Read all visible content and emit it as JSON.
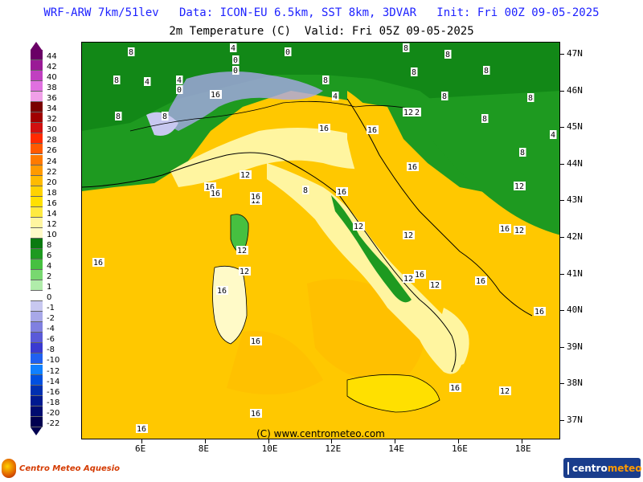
{
  "header": {
    "line1": "WRF-ARW 7km/51lev   Data: ICON-EU 6.5km, SST 8km, 3DVAR   Init: Fri 00Z 09-05-2025",
    "line2": "2m Temperature (C)  Valid: Fri 05Z 09-05-2025"
  },
  "map": {
    "lat_labels": [
      "47N",
      "46N",
      "45N",
      "44N",
      "43N",
      "42N",
      "41N",
      "40N",
      "39N",
      "38N",
      "37N"
    ],
    "lon_labels": [
      "6E",
      "8E",
      "10E",
      "12E",
      "14E",
      "16E",
      "18E"
    ],
    "contour_labels": [
      "8",
      "4",
      "0",
      "4",
      "8",
      "8",
      "8",
      "4",
      "0",
      "0",
      "0",
      "4",
      "8",
      "8",
      "8",
      "8",
      "12",
      "8",
      "8",
      "8",
      "4",
      "8",
      "8",
      "12",
      "16",
      "16",
      "16",
      "12",
      "12",
      "8",
      "16",
      "12",
      "16",
      "16",
      "16",
      "12",
      "12",
      "16",
      "16",
      "12",
      "12",
      "12",
      "16",
      "12",
      "12",
      "16",
      "16",
      "16",
      "12",
      "16",
      "16",
      "16",
      "16",
      "16"
    ],
    "copyright": "(C) www.centrometeo.com"
  },
  "colorbar": {
    "levels": [
      "44",
      "42",
      "40",
      "38",
      "36",
      "34",
      "32",
      "30",
      "28",
      "26",
      "24",
      "22",
      "20",
      "18",
      "16",
      "14",
      "12",
      "10",
      "8",
      "6",
      "4",
      "2",
      "1",
      "0",
      "-1",
      "-2",
      "-4",
      "-6",
      "-8",
      "-10",
      "-12",
      "-14",
      "-16",
      "-18",
      "-20",
      "-22"
    ],
    "colors": [
      "#6a0066",
      "#9a1a96",
      "#c040c0",
      "#e070e0",
      "#f0a0e8",
      "#7a0000",
      "#a00000",
      "#d01010",
      "#ff2a00",
      "#ff5a00",
      "#ff7a00",
      "#ff9a00",
      "#ffba00",
      "#ffd200",
      "#ffe000",
      "#ffea40",
      "#fff5a0",
      "#fffac8",
      "#0a7a10",
      "#1e9a20",
      "#46c040",
      "#78d870",
      "#b0ecaa",
      "#ffffff",
      "#c8c8f0",
      "#a8a8e8",
      "#8080e0",
      "#5a5ad8",
      "#3a3ad0",
      "#2060f0",
      "#1080ff",
      "#0050e0",
      "#0030b0",
      "#001a90",
      "#000c70",
      "#000050"
    ]
  },
  "branding": {
    "left": "Centro Meteo Aquesio",
    "right_a": "centro",
    "right_b": "meteo"
  }
}
